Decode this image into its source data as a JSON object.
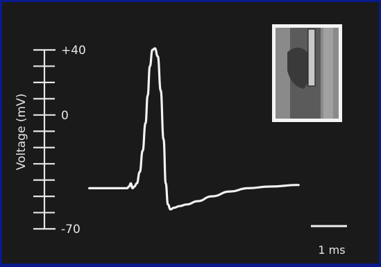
{
  "chart_data": {
    "type": "line",
    "ylabel": "Voltage (mV)",
    "ylim": [
      -70,
      40
    ],
    "yticks": [
      {
        "value": 40,
        "label": "+40"
      },
      {
        "value": 0,
        "label": "0"
      },
      {
        "value": -70,
        "label": "-70"
      }
    ],
    "minor_tick_step": 10,
    "scale_bar": {
      "label": "1 ms",
      "duration_ms": 1
    },
    "series": [
      {
        "x": [
          -1.2,
          -0.4,
          -0.15,
          -0.1,
          -0.05,
          0.0,
          0.05,
          0.12,
          0.2,
          0.28,
          0.36,
          0.42,
          0.48,
          0.55,
          0.62,
          0.7,
          0.78,
          0.86,
          0.92,
          0.98,
          1.05,
          1.15,
          1.3,
          1.5,
          1.8,
          2.2,
          2.7,
          3.2,
          3.8,
          4.6
        ],
        "y": [
          -45,
          -45,
          -45,
          -44,
          -42,
          -45,
          -44,
          -42,
          -35,
          -22,
          -5,
          12,
          30,
          40,
          41,
          36,
          15,
          -15,
          -42,
          -55,
          -58,
          -57,
          -56,
          -55,
          -53,
          -50,
          -47,
          -45,
          -44,
          -43
        ]
      }
    ],
    "colors": {
      "background": "#0a1a8c",
      "panel": "#1a1a1a",
      "trace": "#f0f0f0"
    }
  },
  "inset": {
    "icon": "micrograph-with-electrode"
  }
}
